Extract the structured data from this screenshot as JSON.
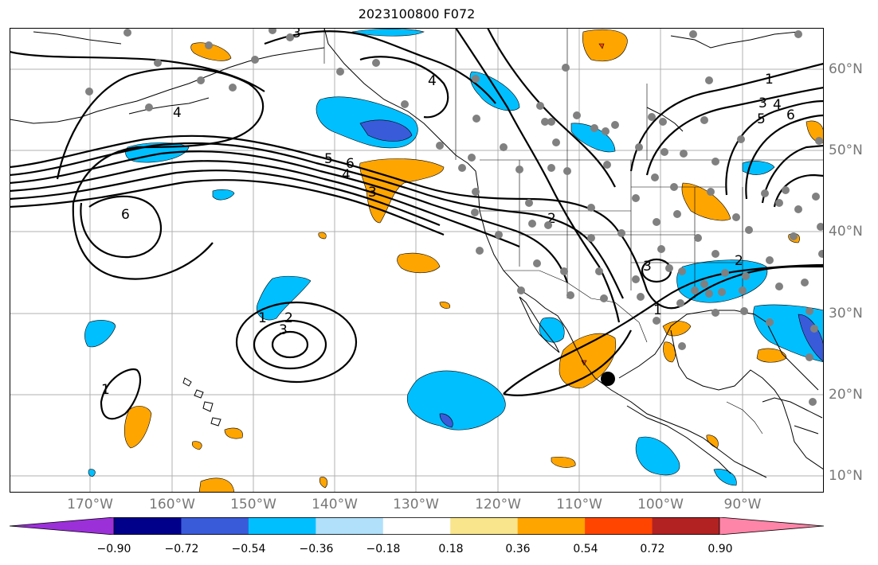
{
  "title": "2023100800 F072",
  "lon_labels": [
    "170°W",
    "160°W",
    "150°W",
    "140°W",
    "130°W",
    "120°W",
    "110°W",
    "100°W",
    "90°W"
  ],
  "lat_labels": [
    "60°N",
    "50°N",
    "40°N",
    "30°N",
    "20°N",
    "10°N"
  ],
  "colorbar": {
    "ticks": [
      "−0.90",
      "−0.72",
      "−0.54",
      "−0.36",
      "−0.18",
      "0.18",
      "0.36",
      "0.54",
      "0.72",
      "0.90"
    ],
    "colors": [
      "#9b30d9",
      "#00008b",
      "#3a5bd9",
      "#00bfff",
      "#b0e0fa",
      "#ffffff",
      "#f8e58c",
      "#ffa500",
      "#ff4500",
      "#b22222",
      "#ff85a8"
    ]
  },
  "contour_labels": [
    "1",
    "2",
    "3",
    "4",
    "5",
    "6"
  ]
}
